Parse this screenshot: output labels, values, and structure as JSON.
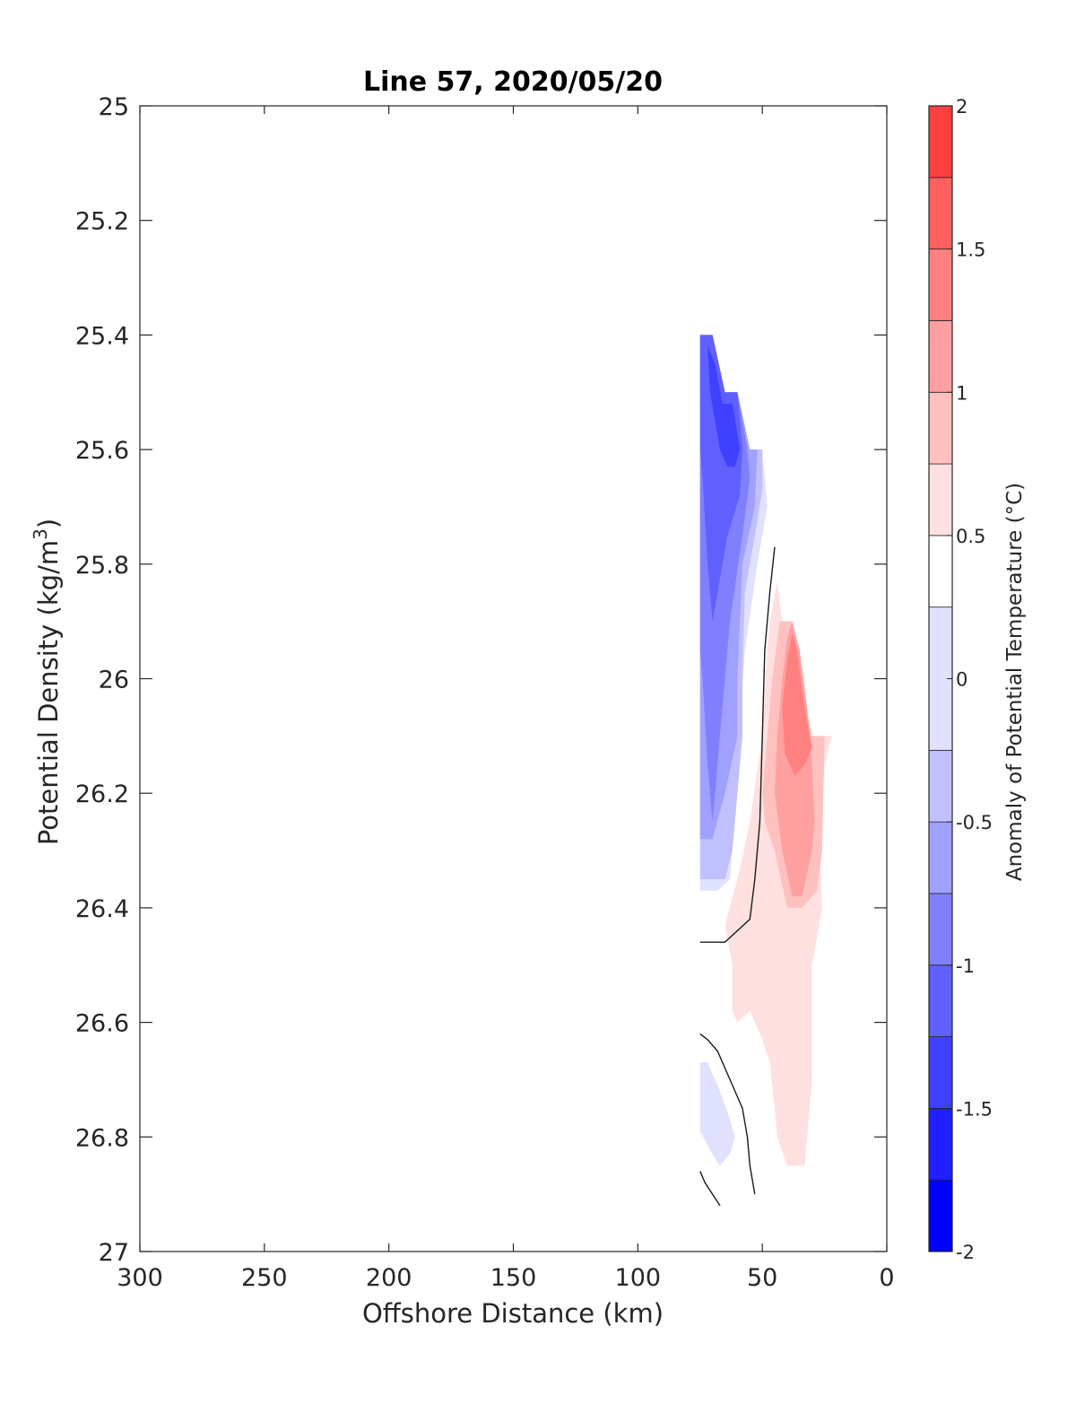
{
  "chart_data": {
    "type": "contour",
    "title": "Line 57, 2020/05/20",
    "xlabel": "Offshore Distance (km)",
    "ylabel": "Potential Density (kg/m",
    "ylabel_sup": "3",
    "ylabel_close": ")",
    "xlim": [
      300,
      0
    ],
    "ylim": [
      25,
      27
    ],
    "x_reversed": true,
    "y_reversed": true,
    "xticks": [
      "300",
      "250",
      "200",
      "150",
      "100",
      "50",
      "0"
    ],
    "xtick_values": [
      300,
      250,
      200,
      150,
      100,
      50,
      0
    ],
    "yticks": [
      "25",
      "25.2",
      "25.4",
      "25.6",
      "25.8",
      "26",
      "26.2",
      "26.4",
      "26.6",
      "26.8",
      "27"
    ],
    "ytick_values": [
      25,
      25.2,
      25.4,
      25.6,
      25.8,
      26,
      26.2,
      26.4,
      26.6,
      26.8,
      27
    ],
    "grid": false,
    "colorbar": {
      "label": "Anomaly of Potential Temperature (°C)",
      "range": [
        -2,
        2
      ],
      "ticks": [
        "-2",
        "-1.5",
        "-1",
        "-0.5",
        "0",
        "0.5",
        "1",
        "1.5",
        "2"
      ],
      "tick_values": [
        -2,
        -1.5,
        -1,
        -0.5,
        0,
        0.5,
        1,
        1.5,
        2
      ],
      "levels": [
        -2,
        -1.75,
        -1.5,
        -1.25,
        -1,
        -0.75,
        -0.5,
        -0.25,
        0.25,
        0.5,
        0.75,
        1,
        1.25,
        1.5,
        1.75,
        2
      ],
      "colors": [
        "#0000ff",
        "#2020ff",
        "#4040ff",
        "#6060ff",
        "#8080ff",
        "#a0a0ff",
        "#c0c0ff",
        "#e0e0ff",
        "#ffffff",
        "#ffe0e0",
        "#ffc0c0",
        "#ffa0a0",
        "#ff8080",
        "#ff6060",
        "#ff4040",
        "#ff2020",
        "#ff0000"
      ]
    },
    "regions": [
      {
        "level": -0.25,
        "color": "#e0e0ff",
        "points": [
          [
            75,
            25.4
          ],
          [
            70,
            25.4
          ],
          [
            65,
            25.5
          ],
          [
            60,
            25.5
          ],
          [
            55,
            25.6
          ],
          [
            50,
            25.6
          ],
          [
            48,
            25.7
          ],
          [
            50,
            25.75
          ],
          [
            52,
            25.8
          ],
          [
            57,
            25.95
          ],
          [
            60,
            26.15
          ],
          [
            63,
            26.35
          ],
          [
            68,
            26.37
          ],
          [
            75,
            26.37
          ]
        ]
      },
      {
        "level": -0.5,
        "color": "#c0c0ff",
        "points": [
          [
            75,
            25.4
          ],
          [
            70,
            25.4
          ],
          [
            65,
            25.5
          ],
          [
            60,
            25.5
          ],
          [
            55,
            25.6
          ],
          [
            50,
            25.6
          ],
          [
            50,
            25.67
          ],
          [
            53,
            25.75
          ],
          [
            57,
            25.85
          ],
          [
            58,
            26.0
          ],
          [
            58,
            26.1
          ],
          [
            62,
            26.3
          ],
          [
            65,
            26.35
          ],
          [
            75,
            26.35
          ]
        ]
      },
      {
        "level": -0.75,
        "color": "#a0a0ff",
        "points": [
          [
            75,
            25.4
          ],
          [
            70,
            25.4
          ],
          [
            65,
            25.5
          ],
          [
            60,
            25.5
          ],
          [
            55,
            25.6
          ],
          [
            52,
            25.6
          ],
          [
            53,
            25.7
          ],
          [
            58,
            25.8
          ],
          [
            60,
            26.0
          ],
          [
            60,
            26.1
          ],
          [
            65,
            26.2
          ],
          [
            70,
            26.28
          ],
          [
            75,
            26.28
          ]
        ]
      },
      {
        "level": -1.0,
        "color": "#8080ff",
        "points": [
          [
            75,
            25.4
          ],
          [
            70,
            25.4
          ],
          [
            65,
            25.5
          ],
          [
            60,
            25.5
          ],
          [
            56,
            25.6
          ],
          [
            55,
            25.65
          ],
          [
            58,
            25.75
          ],
          [
            63,
            25.9
          ],
          [
            66,
            26.05
          ],
          [
            68,
            26.15
          ],
          [
            70,
            26.25
          ],
          [
            72,
            26.15
          ],
          [
            74,
            26.0
          ],
          [
            75,
            25.95
          ]
        ]
      },
      {
        "level": -1.25,
        "color": "#6060ff",
        "points": [
          [
            75,
            25.4
          ],
          [
            70,
            25.4
          ],
          [
            65,
            25.5
          ],
          [
            60,
            25.5
          ],
          [
            58,
            25.6
          ],
          [
            59,
            25.68
          ],
          [
            64,
            25.75
          ],
          [
            68,
            25.85
          ],
          [
            70,
            25.9
          ],
          [
            72,
            25.8
          ],
          [
            74,
            25.65
          ],
          [
            75,
            25.6
          ]
        ]
      },
      {
        "level": -1.5,
        "color": "#4040ff",
        "points": [
          [
            72,
            25.42
          ],
          [
            69,
            25.45
          ],
          [
            66,
            25.52
          ],
          [
            62,
            25.52
          ],
          [
            59,
            25.6
          ],
          [
            61,
            25.63
          ],
          [
            64,
            25.63
          ],
          [
            67,
            25.6
          ],
          [
            71,
            25.5
          ]
        ]
      },
      {
        "level": -0.25,
        "color": "#e0e0ff",
        "points": [
          [
            75,
            26.67
          ],
          [
            72,
            26.67
          ],
          [
            67,
            26.72
          ],
          [
            63,
            26.77
          ],
          [
            61,
            26.8
          ],
          [
            63,
            26.83
          ],
          [
            67,
            26.85
          ],
          [
            70,
            26.83
          ],
          [
            75,
            26.79
          ]
        ]
      },
      {
        "level": 0.25,
        "color": "#ffe0e0",
        "points": [
          [
            44,
            25.83
          ],
          [
            42,
            25.9
          ],
          [
            38,
            25.9
          ],
          [
            35,
            26.0
          ],
          [
            30,
            26.1
          ],
          [
            22,
            26.1
          ],
          [
            25,
            26.15
          ],
          [
            27,
            26.3
          ],
          [
            26,
            26.4
          ],
          [
            30,
            26.5
          ],
          [
            30,
            26.7
          ],
          [
            33,
            26.85
          ],
          [
            40,
            26.85
          ],
          [
            44,
            26.8
          ],
          [
            45,
            26.75
          ],
          [
            47,
            26.67
          ],
          [
            50,
            26.63
          ],
          [
            55,
            26.58
          ],
          [
            60,
            26.6
          ],
          [
            62,
            26.58
          ],
          [
            62,
            26.5
          ],
          [
            65,
            26.43
          ],
          [
            60,
            26.35
          ],
          [
            55,
            26.25
          ],
          [
            50,
            26.1
          ],
          [
            48,
            25.95
          ],
          [
            47,
            25.9
          ]
        ]
      },
      {
        "level": 0.5,
        "color": "#ffc0c0",
        "points": [
          [
            43,
            25.9
          ],
          [
            38,
            25.9
          ],
          [
            35,
            26.0
          ],
          [
            30,
            26.1
          ],
          [
            25,
            26.1
          ],
          [
            26,
            26.3
          ],
          [
            28,
            26.37
          ],
          [
            34,
            26.4
          ],
          [
            40,
            26.4
          ],
          [
            45,
            26.3
          ],
          [
            49,
            26.25
          ],
          [
            50,
            26.2
          ],
          [
            48,
            26.1
          ],
          [
            46,
            26.0
          ]
        ]
      },
      {
        "level": 0.75,
        "color": "#ffa0a0",
        "points": [
          [
            40,
            25.93
          ],
          [
            38,
            25.9
          ],
          [
            35,
            25.95
          ],
          [
            32,
            26.05
          ],
          [
            30,
            26.15
          ],
          [
            29,
            26.25
          ],
          [
            30,
            26.3
          ],
          [
            34,
            26.38
          ],
          [
            38,
            26.38
          ],
          [
            42,
            26.3
          ],
          [
            45,
            26.2
          ],
          [
            44,
            26.1
          ],
          [
            42,
            26.0
          ]
        ]
      },
      {
        "level": 1.0,
        "color": "#ff8080",
        "points": [
          [
            38,
            25.92
          ],
          [
            36,
            25.95
          ],
          [
            33,
            26.05
          ],
          [
            30,
            26.12
          ],
          [
            33,
            26.15
          ],
          [
            37,
            26.17
          ],
          [
            41,
            26.13
          ],
          [
            42,
            26.05
          ],
          [
            40,
            25.97
          ]
        ]
      }
    ],
    "zero_contours": [
      [
        [
          45,
          25.77
        ],
        [
          47,
          25.85
        ],
        [
          49,
          25.95
        ],
        [
          50,
          26.1
        ],
        [
          51,
          26.25
        ],
        [
          53,
          26.35
        ],
        [
          55,
          26.42
        ],
        [
          60,
          26.44
        ],
        [
          65,
          26.46
        ],
        [
          70,
          26.46
        ],
        [
          75,
          26.46
        ]
      ],
      [
        [
          75,
          26.62
        ],
        [
          72,
          26.63
        ],
        [
          68,
          26.65
        ],
        [
          63,
          26.7
        ],
        [
          58,
          26.75
        ],
        [
          56,
          26.8
        ],
        [
          55,
          26.85
        ],
        [
          53,
          26.9
        ]
      ],
      [
        [
          75,
          26.86
        ],
        [
          73,
          26.88
        ],
        [
          70,
          26.9
        ],
        [
          67,
          26.92
        ]
      ]
    ]
  }
}
